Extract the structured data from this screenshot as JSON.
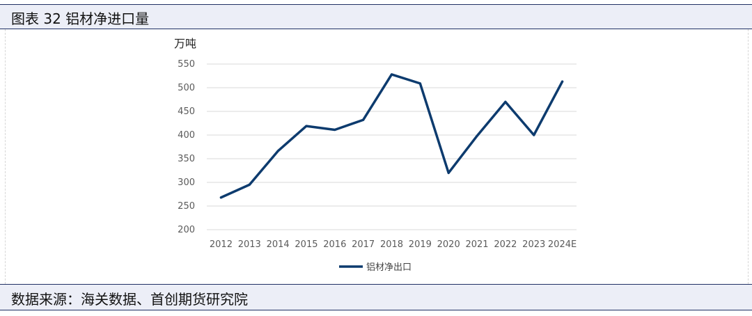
{
  "header": {
    "title": "图表 32 铝材净进口量"
  },
  "footer": {
    "source": "数据来源：海关数据、首创期货研究院"
  },
  "chart_data": {
    "type": "line",
    "title": "",
    "xlabel": "",
    "ylabel": "万吨",
    "categories": [
      "2012",
      "2013",
      "2014",
      "2015",
      "2016",
      "2017",
      "2018",
      "2019",
      "2020",
      "2021",
      "2022",
      "2023",
      "2024E"
    ],
    "series": [
      {
        "name": "铝材净出口",
        "values": [
          268,
          295,
          366,
          419,
          411,
          432,
          528,
          509,
          320,
          398,
          470,
          400,
          513
        ],
        "color": "#0d3b6e"
      }
    ],
    "ylim": [
      200,
      550
    ],
    "yticks": [
      200,
      250,
      300,
      350,
      400,
      450,
      500,
      550
    ],
    "grid": true,
    "legend": "bottom-center"
  }
}
